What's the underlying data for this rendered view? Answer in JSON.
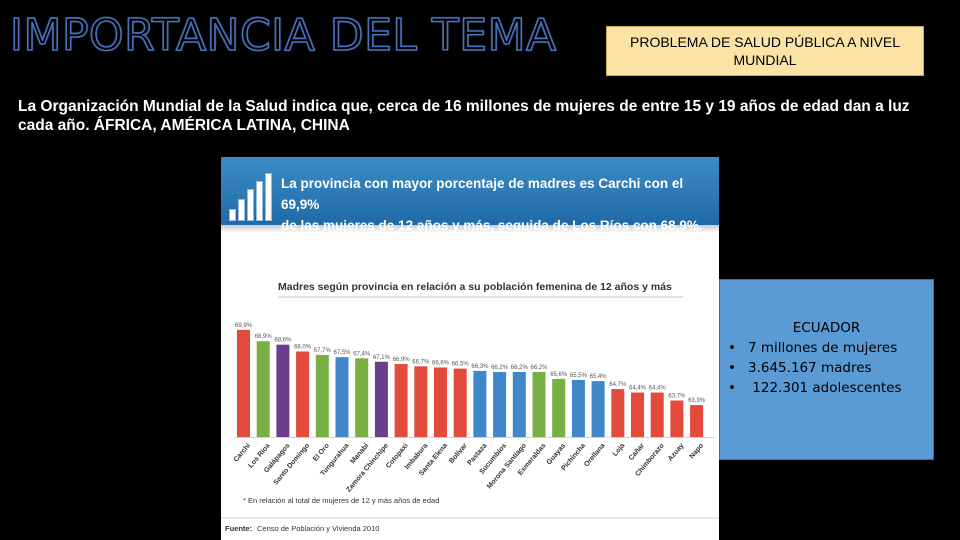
{
  "header": {
    "title": "IMPORTANCIA DEL TEMA",
    "badge": "PROBLEMA DE SALUD PÚBLICA A NIVEL MUNDIAL"
  },
  "intro": "La Organización Mundial de la Salud indica que, cerca de 16 millones de mujeres de entre 15 y 19 años de edad dan a luz cada año. ÁFRICA, AMÉRICA LATINA, CHINA",
  "infographic": {
    "banner_line1": "La provincia con mayor porcentaje de madres es Carchi con el 69,9%",
    "banner_line2": "de las mujeres de 12 años y más, seguida de Los Ríos con 68,9%.",
    "footnote": "* En relación al total de mujeres de 12 y más años de edad",
    "source_label": "Fuente:",
    "source_text": "Censo de Población y Vivienda 2010"
  },
  "ecuador_box": {
    "title": "ECUADOR",
    "items": [
      "7 millones de mujeres",
      "3.645.167 madres",
      " 122.301 adolescentes"
    ],
    "bullet": "•"
  },
  "chart_data": {
    "type": "bar",
    "title": "Madres según provincia en relación a su población femenina de 12 años y más",
    "categories": [
      "Carchi",
      "Los Ríos",
      "Galápagos",
      "Santo Domingo",
      "El Oro",
      "Tungurahua",
      "Manabí",
      "Zamora Chinchipe",
      "Cotopaxi",
      "Imbabura",
      "Santa Elena",
      "Bolívar",
      "Pastaza",
      "Sucumbíos",
      "Morona Santiago",
      "Esmeraldas",
      "Guayas",
      "Pichincha",
      "Orellana",
      "Loja",
      "Cañar",
      "Chimborazo",
      "Azuay",
      "Napo"
    ],
    "values": [
      69.9,
      68.9,
      68.6,
      68.0,
      67.7,
      67.5,
      67.4,
      67.1,
      66.9,
      66.7,
      66.6,
      66.5,
      66.3,
      66.2,
      66.2,
      66.2,
      65.6,
      65.5,
      65.4,
      64.7,
      64.4,
      64.4,
      63.7,
      63.3
    ],
    "labels": [
      "69,9%",
      "68,9%",
      "68,6%",
      "68,0%",
      "67,7%",
      "67,5%",
      "67,4%",
      "67,1%",
      "66,9%",
      "66,7%",
      "66,6%",
      "66,5%",
      "66,3%",
      "66,2%",
      "66,2%",
      "66,2%",
      "65,6%",
      "65,5%",
      "65,4%",
      "64,7%",
      "64,4%",
      "64,4%",
      "63,7%",
      "63,3%"
    ],
    "colors": [
      "#e24a3b",
      "#78b043",
      "#6a3e8c",
      "#e24a3b",
      "#78b043",
      "#3f87c8",
      "#78b043",
      "#6a3e8c",
      "#e24a3b",
      "#e24a3b",
      "#e24a3b",
      "#e24a3b",
      "#3f87c8",
      "#3f87c8",
      "#3f87c8",
      "#78b043",
      "#78b043",
      "#3f87c8",
      "#3f87c8",
      "#e24a3b",
      "#e24a3b",
      "#e24a3b",
      "#e24a3b",
      "#e24a3b"
    ],
    "ylim": [
      60.5,
      70.5
    ]
  }
}
